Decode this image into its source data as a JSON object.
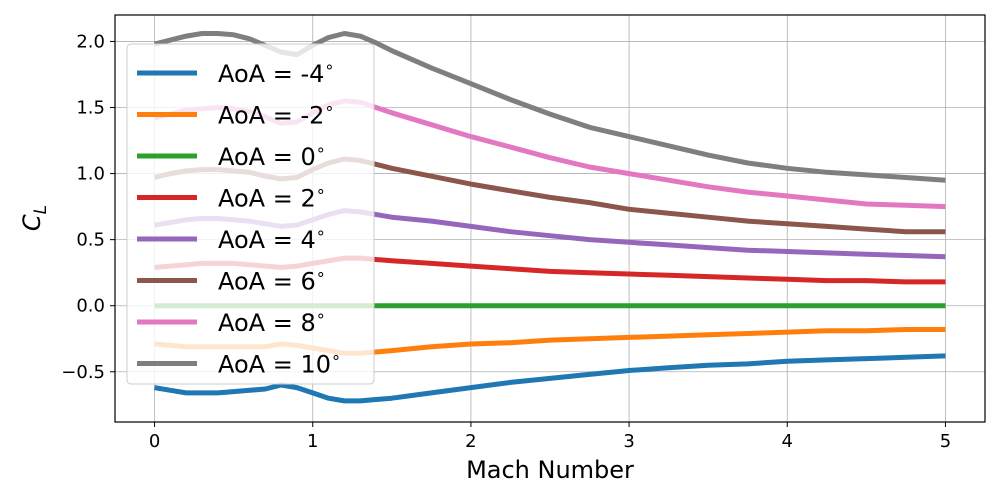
{
  "chart_data": {
    "type": "line",
    "xlabel": "Mach Number",
    "ylabel_base": "C",
    "ylabel_sub": "L",
    "xlim": [
      -0.25,
      5.25
    ],
    "ylim": [
      -0.88,
      2.2
    ],
    "xticks": [
      0,
      1,
      2,
      3,
      4,
      5
    ],
    "xtick_labels": [
      "0",
      "1",
      "2",
      "3",
      "4",
      "5"
    ],
    "yticks": [
      -0.5,
      0.0,
      0.5,
      1.0,
      1.5,
      2.0
    ],
    "ytick_labels": [
      "−0.5",
      "0.0",
      "0.5",
      "1.0",
      "1.5",
      "2.0"
    ],
    "grid": true,
    "legend_position": "upper-left",
    "x": [
      0,
      0.1,
      0.2,
      0.3,
      0.4,
      0.5,
      0.6,
      0.7,
      0.8,
      0.9,
      1.0,
      1.1,
      1.2,
      1.3,
      1.4,
      1.5,
      1.75,
      2.0,
      2.25,
      2.5,
      2.75,
      3.0,
      3.25,
      3.5,
      3.75,
      4.0,
      4.25,
      4.5,
      4.75,
      5.0
    ],
    "series": [
      {
        "name": "AoA = -4",
        "color": "#1f77b4",
        "values": [
          -0.62,
          -0.64,
          -0.66,
          -0.66,
          -0.66,
          -0.65,
          -0.64,
          -0.63,
          -0.6,
          -0.62,
          -0.66,
          -0.7,
          -0.72,
          -0.72,
          -0.71,
          -0.7,
          -0.66,
          -0.62,
          -0.58,
          -0.55,
          -0.52,
          -0.49,
          -0.47,
          -0.45,
          -0.44,
          -0.42,
          -0.41,
          -0.4,
          -0.39,
          -0.38
        ]
      },
      {
        "name": "AoA = -2",
        "color": "#ff7f0e",
        "values": [
          -0.29,
          -0.3,
          -0.31,
          -0.31,
          -0.31,
          -0.31,
          -0.31,
          -0.31,
          -0.29,
          -0.3,
          -0.32,
          -0.34,
          -0.36,
          -0.36,
          -0.35,
          -0.34,
          -0.31,
          -0.29,
          -0.28,
          -0.26,
          -0.25,
          -0.24,
          -0.23,
          -0.22,
          -0.21,
          -0.2,
          -0.19,
          -0.19,
          -0.18,
          -0.18
        ]
      },
      {
        "name": "AoA = 0",
        "color": "#2ca02c",
        "values": [
          0,
          0,
          0,
          0,
          0,
          0,
          0,
          0,
          0,
          0,
          0,
          0,
          0,
          0,
          0,
          0,
          0,
          0,
          0,
          0,
          0,
          0,
          0,
          0,
          0,
          0,
          0,
          0,
          0,
          0
        ]
      },
      {
        "name": "AoA = 2",
        "color": "#d62728",
        "values": [
          0.29,
          0.3,
          0.31,
          0.32,
          0.32,
          0.32,
          0.31,
          0.3,
          0.29,
          0.3,
          0.32,
          0.34,
          0.36,
          0.36,
          0.35,
          0.34,
          0.32,
          0.3,
          0.28,
          0.26,
          0.25,
          0.24,
          0.23,
          0.22,
          0.21,
          0.2,
          0.19,
          0.19,
          0.18,
          0.18
        ]
      },
      {
        "name": "AoA = 4",
        "color": "#9467bd",
        "values": [
          0.61,
          0.63,
          0.65,
          0.66,
          0.66,
          0.65,
          0.64,
          0.62,
          0.6,
          0.61,
          0.65,
          0.69,
          0.72,
          0.71,
          0.69,
          0.67,
          0.64,
          0.6,
          0.56,
          0.53,
          0.5,
          0.48,
          0.46,
          0.44,
          0.42,
          0.41,
          0.4,
          0.39,
          0.38,
          0.37
        ]
      },
      {
        "name": "AoA = 6",
        "color": "#8c564b",
        "values": [
          0.97,
          1.0,
          1.02,
          1.03,
          1.03,
          1.02,
          1.01,
          0.98,
          0.96,
          0.97,
          1.03,
          1.08,
          1.11,
          1.1,
          1.07,
          1.04,
          0.98,
          0.92,
          0.87,
          0.82,
          0.78,
          0.73,
          0.7,
          0.67,
          0.64,
          0.62,
          0.6,
          0.58,
          0.56,
          0.56
        ]
      },
      {
        "name": "AoA = 8",
        "color": "#e377c2",
        "values": [
          1.42,
          1.45,
          1.48,
          1.49,
          1.5,
          1.49,
          1.47,
          1.43,
          1.38,
          1.39,
          1.46,
          1.52,
          1.55,
          1.54,
          1.5,
          1.46,
          1.37,
          1.28,
          1.2,
          1.12,
          1.05,
          1.0,
          0.95,
          0.9,
          0.86,
          0.83,
          0.8,
          0.77,
          0.76,
          0.75
        ]
      },
      {
        "name": "AoA = 10",
        "color": "#7f7f7f",
        "values": [
          1.98,
          2.01,
          2.04,
          2.06,
          2.06,
          2.05,
          2.02,
          1.97,
          1.92,
          1.9,
          1.97,
          2.03,
          2.06,
          2.04,
          1.99,
          1.93,
          1.8,
          1.68,
          1.56,
          1.45,
          1.35,
          1.28,
          1.21,
          1.14,
          1.08,
          1.04,
          1.01,
          0.99,
          0.97,
          0.95
        ]
      }
    ]
  }
}
